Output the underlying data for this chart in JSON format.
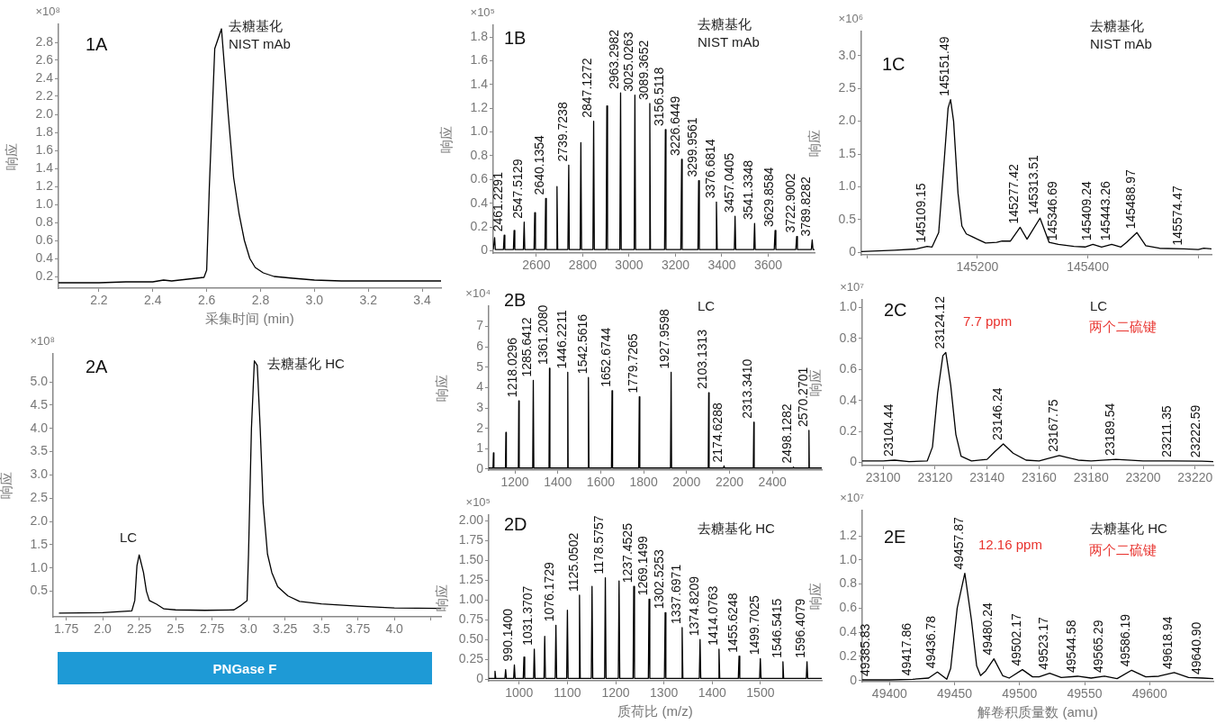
{
  "chart_data": [
    {
      "type": "line",
      "title": "1A",
      "xlabel": "采集时间 (min)",
      "ylabel": "响应",
      "color": "#000000",
      "annotations": [
        "×10⁸",
        "去糖基化\nNIST mAb"
      ],
      "x": [
        2.05,
        2.2,
        2.3,
        2.4,
        2.44,
        2.47,
        2.5,
        2.56,
        2.59,
        2.6,
        2.61,
        2.63,
        2.655,
        2.68,
        2.7,
        2.72,
        2.74,
        2.76,
        2.78,
        2.81,
        2.85,
        2.92,
        3.0,
        3.1,
        3.3,
        3.47
      ],
      "values": [
        0.13,
        0.13,
        0.14,
        0.14,
        0.16,
        0.15,
        0.16,
        0.18,
        0.19,
        0.27,
        1.2,
        2.73,
        2.95,
        2.0,
        1.3,
        0.9,
        0.6,
        0.4,
        0.3,
        0.24,
        0.2,
        0.18,
        0.16,
        0.15,
        0.15,
        0.15
      ],
      "xlim": [
        2.05,
        3.47
      ],
      "ylim": [
        0.07,
        3.0
      ],
      "xticks": [
        2.2,
        2.4,
        2.6,
        2.8,
        {
          "value": 3,
          "label": "3.0"
        },
        3.2,
        3.4
      ],
      "yticks": [
        0.2,
        0.4,
        0.6,
        0.8,
        {
          "value": 1,
          "label": "1.0"
        },
        1.2,
        1.4,
        1.6,
        1.8,
        {
          "value": 2,
          "label": "2.0"
        },
        2.2,
        2.4,
        2.6,
        2.8
      ]
    },
    {
      "type": "line",
      "title": "1B",
      "ylabel": "响应",
      "color": "#000000",
      "annotations": [
        "×10⁵",
        "去糖基化\nNIST mAb",
        {
          "text": "2461.2291",
          "x": 2461.2291,
          "y": 0.13
        },
        {
          "text": "2547.5129",
          "x": 2547.5129,
          "y": 0.24
        },
        {
          "text": "2640.1354",
          "x": 2640.1354,
          "y": 0.44
        },
        {
          "text": "2739.7238",
          "x": 2739.7238,
          "y": 0.72
        },
        {
          "text": "2847.1272",
          "x": 2847.1272,
          "y": 1.09
        },
        {
          "text": "2963.2982",
          "x": 2963.2982,
          "y": 1.33
        },
        {
          "text": "3025.0263",
          "x": 3025.0263,
          "y": 1.31
        },
        {
          "text": "3089.3652",
          "x": 3089.3652,
          "y": 1.24
        },
        {
          "text": "3156.5118",
          "x": 3156.5118,
          "y": 1.02
        },
        {
          "text": "3226.6449",
          "x": 3226.6449,
          "y": 0.77
        },
        {
          "text": "3299.9561",
          "x": 3299.9561,
          "y": 0.59
        },
        {
          "text": "3376.6814",
          "x": 3376.6814,
          "y": 0.41
        },
        {
          "text": "3457.0405",
          "x": 3457.0405,
          "y": 0.29
        },
        {
          "text": "3541.3348",
          "x": 3541.3348,
          "y": 0.23
        },
        {
          "text": "3629.8584",
          "x": 3629.8584,
          "y": 0.17
        },
        {
          "text": "3722.9002",
          "x": 3722.9002,
          "y": 0.12
        },
        {
          "text": "3789.8282",
          "x": 3789.8282,
          "y": 0.09
        }
      ],
      "x": [
        2414,
        2417,
        2420,
        2423,
        2458,
        2461.2291,
        2464,
        2501,
        2504,
        2507,
        2544,
        2547.5129,
        2550,
        2590,
        2593,
        2596,
        2637,
        2640.1354,
        2643,
        2686,
        2689,
        2692,
        2736,
        2739.7238,
        2742,
        2789,
        2792,
        2795,
        2844,
        2847.1272,
        2850,
        2901,
        2904,
        2907,
        2960,
        2963.2982,
        2966,
        3022,
        3025.0263,
        3028,
        3086,
        3089.3652,
        3092,
        3153,
        3156.5118,
        3159,
        3223,
        3226.6449,
        3229,
        3297,
        3299.9561,
        3303,
        3373,
        3376.6814,
        3380,
        3454,
        3457.0405,
        3460,
        3538,
        3541.3348,
        3544,
        3626,
        3629.8584,
        3633,
        3719,
        3722.9002,
        3726,
        3786,
        3789.8282,
        3793,
        3800
      ],
      "values": [
        0.01,
        0.01,
        0.11,
        0.01,
        0.01,
        0.13,
        0.01,
        0.01,
        0.17,
        0.01,
        0.01,
        0.24,
        0.01,
        0.01,
        0.32,
        0.01,
        0.01,
        0.44,
        0.01,
        0.01,
        0.54,
        0.01,
        0.01,
        0.72,
        0.01,
        0.01,
        0.91,
        0.01,
        0.01,
        1.09,
        0.01,
        0.01,
        1.22,
        0.01,
        0.01,
        1.33,
        0.01,
        0.01,
        1.31,
        0.01,
        0.01,
        1.24,
        0.01,
        0.01,
        1.02,
        0.01,
        0.01,
        0.77,
        0.01,
        0.01,
        0.59,
        0.01,
        0.01,
        0.41,
        0.01,
        0.01,
        0.29,
        0.01,
        0.01,
        0.23,
        0.01,
        0.01,
        0.17,
        0.01,
        0.01,
        0.12,
        0.01,
        0.01,
        0.09,
        0.01,
        0.01
      ],
      "xlim": [
        2414,
        3800
      ],
      "ylim": [
        -0.02,
        1.9
      ],
      "xticks": [
        2600,
        2800,
        3000,
        3200,
        3400,
        3600
      ],
      "yticks": [
        0,
        0.2,
        0.4,
        0.6,
        0.8,
        {
          "value": 1,
          "label": "1.0"
        },
        1.2,
        1.4,
        1.6,
        1.8
      ]
    },
    {
      "type": "line",
      "title": "1C",
      "ylabel": "响应",
      "color": "#000000",
      "annotations": [
        "×10⁶",
        "去糖基化\nNIST mAb",
        {
          "text": "145109.15",
          "x": 145109.15,
          "y": 0.09
        },
        {
          "text": "145151.49",
          "x": 145151.49,
          "y": 2.33
        },
        {
          "text": "145277.42",
          "x": 145277.42,
          "y": 0.38
        },
        {
          "text": "145313.51",
          "x": 145313.51,
          "y": 0.52
        },
        {
          "text": "145346.69",
          "x": 145346.69,
          "y": 0.12
        },
        {
          "text": "145409.24",
          "x": 145409.24,
          "y": 0.12
        },
        {
          "text": "145443.26",
          "x": 145443.26,
          "y": 0.12
        },
        {
          "text": "145488.97",
          "x": 145488.97,
          "y": 0.3
        },
        {
          "text": "145574.47",
          "x": 145574.47,
          "y": 0.05
        }
      ],
      "x": [
        144990,
        145050,
        145090,
        145109.15,
        145118,
        145130,
        145140,
        145147,
        145151.49,
        145157,
        145165,
        145172,
        145180,
        145190,
        145200,
        145215,
        145235,
        145245,
        145260,
        145277.42,
        145290,
        145313.51,
        145330,
        145346.69,
        145375,
        145395,
        145409.24,
        145425,
        145443.26,
        145460,
        145470,
        145488.97,
        145505,
        145530,
        145574.47,
        145600,
        145610,
        145624
      ],
      "values": [
        0.01,
        0.03,
        0.05,
        0.09,
        0.08,
        0.3,
        1.4,
        2.2,
        2.33,
        2.0,
        0.9,
        0.4,
        0.28,
        0.24,
        0.2,
        0.14,
        0.15,
        0.17,
        0.17,
        0.38,
        0.2,
        0.52,
        0.15,
        0.12,
        0.09,
        0.08,
        0.12,
        0.08,
        0.12,
        0.08,
        0.15,
        0.3,
        0.1,
        0.06,
        0.05,
        0.04,
        0.06,
        0.05
      ],
      "xlim": [
        144990,
        145624
      ],
      "ylim": [
        -0.04,
        3.37
      ],
      "xticks": [
        {
          "value": 145000,
          "label": null
        },
        145200,
        145400,
        {
          "value": 145600,
          "label": null
        }
      ],
      "yticks": [
        0,
        0.5,
        {
          "value": 1,
          "label": "1.0"
        },
        1.5,
        {
          "value": 2,
          "label": "2.0"
        },
        2.5,
        {
          "value": 3,
          "label": "3.0"
        }
      ]
    },
    {
      "type": "line",
      "title": "2A",
      "ylabel": "响应",
      "color": "#000000",
      "annotations": [
        "×10⁸",
        "LC",
        "去糖基化 HC",
        "PNGase F"
      ],
      "x": [
        1.7,
        2.0,
        2.2,
        2.22,
        2.235,
        2.25,
        2.28,
        2.3,
        2.32,
        2.37,
        2.42,
        2.5,
        2.7,
        2.9,
        2.95,
        2.99,
        3.0,
        3.02,
        3.04,
        3.06,
        3.08,
        3.1,
        3.13,
        3.16,
        3.2,
        3.27,
        3.35,
        3.5,
        3.75,
        4.0,
        4.32
      ],
      "values": [
        0.03,
        0.04,
        0.08,
        0.3,
        1.05,
        1.28,
        0.9,
        0.5,
        0.3,
        0.22,
        0.12,
        0.1,
        0.09,
        0.1,
        0.2,
        0.3,
        1.3,
        4.0,
        5.45,
        5.35,
        4.0,
        2.4,
        1.3,
        0.9,
        0.6,
        0.4,
        0.28,
        0.23,
        0.18,
        0.14,
        0.13
      ],
      "xlim": [
        1.66,
        4.32
      ],
      "ylim": [
        -0.05,
        5.6
      ],
      "xticks": [
        1.75,
        {
          "value": 2,
          "label": "2.0"
        },
        2.25,
        2.5,
        2.75,
        {
          "value": 3,
          "label": "3.0"
        },
        3.25,
        3.5,
        3.75,
        {
          "value": 4,
          "label": "4.0"
        },
        {
          "value": 4.25,
          "label": null
        }
      ],
      "yticks": [
        0.5,
        {
          "value": 1,
          "label": "1.0"
        },
        1.5,
        {
          "value": 2,
          "label": "2.0"
        },
        2.5,
        {
          "value": 3,
          "label": "3.0"
        },
        3.5,
        {
          "value": 4,
          "label": "4.0"
        },
        4.5,
        {
          "value": 5,
          "label": "5.0"
        }
      ]
    },
    {
      "type": "line",
      "title": "2B",
      "ylabel": "响应",
      "color": "#000000",
      "annotations": [
        "×10⁴",
        "LC",
        {
          "text": "1218.0296",
          "x": 1218.0296,
          "y": 3.35
        },
        {
          "text": "1285.6412",
          "x": 1285.6412,
          "y": 4.35
        },
        {
          "text": "1361.2080",
          "x": 1361.208,
          "y": 4.95
        },
        {
          "text": "1446.2211",
          "x": 1446.2211,
          "y": 4.75
        },
        {
          "text": "1542.5616",
          "x": 1542.5616,
          "y": 4.5
        },
        {
          "text": "1652.6744",
          "x": 1652.6744,
          "y": 3.85
        },
        {
          "text": "1779.7265",
          "x": 1779.7265,
          "y": 3.55
        },
        {
          "text": "1927.9598",
          "x": 1927.9598,
          "y": 4.75
        },
        {
          "text": "2103.1313",
          "x": 2103.1313,
          "y": 3.75
        },
        {
          "text": "2174.6288",
          "x": 2174.6288,
          "y": 0.15
        },
        {
          "text": "2313.3410",
          "x": 2313.341,
          "y": 2.3
        },
        {
          "text": "2498.1282",
          "x": 2498.1282,
          "y": 0.1
        },
        {
          "text": "2570.2701",
          "x": 2570.2701,
          "y": 1.9
        }
      ],
      "x": [
        1078,
        1098,
        1100,
        1102,
        1156,
        1158,
        1160,
        1216,
        1218.0296,
        1220,
        1283,
        1285.6412,
        1288,
        1359,
        1361.208,
        1363,
        1444,
        1446.2211,
        1448,
        1540,
        1542.5616,
        1545,
        1650,
        1652.6744,
        1655,
        1777,
        1779.7265,
        1782,
        1925,
        1927.9598,
        1930,
        2101,
        2103.1313,
        2105,
        2172,
        2174.6288,
        2177,
        2311,
        2313.341,
        2315,
        2496,
        2498.1282,
        2500,
        2568,
        2570.2701,
        2572,
        2630
      ],
      "values": [
        0.05,
        0.05,
        0.8,
        0.05,
        0.05,
        1.8,
        0.05,
        0.05,
        3.35,
        0.05,
        0.05,
        4.35,
        0.05,
        0.05,
        4.95,
        0.05,
        0.05,
        4.75,
        0.05,
        0.05,
        4.5,
        0.05,
        0.05,
        3.85,
        0.05,
        0.05,
        3.55,
        0.05,
        0.05,
        4.75,
        0.05,
        0.05,
        3.75,
        0.05,
        0.05,
        0.15,
        0.05,
        0.05,
        2.3,
        0.05,
        0.05,
        0.1,
        0.05,
        0.05,
        1.9,
        0.05,
        0.05
      ],
      "xlim": [
        1078,
        2630
      ],
      "ylim": [
        -0.05,
        8
      ],
      "xticks": [
        1200,
        1400,
        1600,
        1800,
        2000,
        2200,
        2400
      ],
      "yticks": [
        0,
        1,
        2,
        3,
        4,
        5,
        6,
        7
      ]
    },
    {
      "type": "line",
      "title": "2C",
      "ylabel": "响应",
      "color": "#000000",
      "annotations": [
        "×10⁷",
        "7.7 ppm",
        "LC",
        "两个二硫键",
        {
          "text": "23104.44",
          "x": 23104.44,
          "y": 0.015
        },
        {
          "text": "23124.12",
          "x": 23124.12,
          "y": 0.71
        },
        {
          "text": "23146.24",
          "x": 23146.24,
          "y": 0.12
        },
        {
          "text": "23167.75",
          "x": 23167.75,
          "y": 0.045
        },
        {
          "text": "23189.54",
          "x": 23189.54,
          "y": 0.02
        },
        {
          "text": "23211.35",
          "x": 23211.35,
          "y": 0.01
        },
        {
          "text": "23222.59",
          "x": 23222.59,
          "y": 0.008
        }
      ],
      "x": [
        23092,
        23100,
        23104.44,
        23110,
        23117,
        23119,
        23121,
        23123,
        23124.12,
        23126,
        23128,
        23130,
        23134,
        23140,
        23143,
        23146.24,
        23150,
        23155,
        23160,
        23167.75,
        23175,
        23180,
        23189.54,
        23200,
        23211.35,
        23222.59,
        23227
      ],
      "values": [
        0.01,
        0.01,
        0.015,
        0.005,
        0.01,
        0.1,
        0.45,
        0.69,
        0.71,
        0.5,
        0.18,
        0.04,
        0.01,
        0.02,
        0.07,
        0.12,
        0.06,
        0.015,
        0.01,
        0.045,
        0.015,
        0.01,
        0.02,
        0.01,
        0.01,
        0.008,
        0.005
      ],
      "xlim": [
        23092,
        23227
      ],
      "ylim": [
        -0.02,
        1.05
      ],
      "xticks": [
        23100,
        23120,
        23140,
        23160,
        23180,
        23200,
        23220
      ],
      "yticks": [
        0,
        0.2,
        0.4,
        0.6,
        0.8,
        {
          "value": 1,
          "label": "1.0"
        }
      ]
    },
    {
      "type": "line",
      "title": "2D",
      "xlabel": "质荷比 (m/z)",
      "ylabel": "响应",
      "color": "#000000",
      "annotations": [
        "×10⁵",
        "去糖基化 HC",
        {
          "text": "990.1400",
          "x": 990.14,
          "y": 0.18
        },
        {
          "text": "1031.3707",
          "x": 1031.3707,
          "y": 0.38
        },
        {
          "text": "1076.1729",
          "x": 1076.1729,
          "y": 0.68
        },
        {
          "text": "1125.0502",
          "x": 1125.0502,
          "y": 1.06
        },
        {
          "text": "1178.5757",
          "x": 1178.5757,
          "y": 1.28
        },
        {
          "text": "1237.4525",
          "x": 1237.4525,
          "y": 1.17
        },
        {
          "text": "1269.1499",
          "x": 1269.1499,
          "y": 1.01
        },
        {
          "text": "1302.5253",
          "x": 1302.5253,
          "y": 0.84
        },
        {
          "text": "1337.6971",
          "x": 1337.6971,
          "y": 0.65
        },
        {
          "text": "1374.8209",
          "x": 1374.8209,
          "y": 0.5
        },
        {
          "text": "1414.0763",
          "x": 1414.0763,
          "y": 0.38
        },
        {
          "text": "1455.6248",
          "x": 1455.6248,
          "y": 0.29
        },
        {
          "text": "1499.7025",
          "x": 1499.7025,
          "y": 0.26
        },
        {
          "text": "1546.5415",
          "x": 1546.5415,
          "y": 0.22
        },
        {
          "text": "1596.4079",
          "x": 1596.4079,
          "y": 0.22
        }
      ],
      "x": [
        937,
        948.5,
        950,
        951.5,
        970.5,
        972,
        973.5,
        988.6,
        990.14,
        991.6,
        1008.5,
        1010,
        1011.5,
        1029.9,
        1031.3707,
        1032.9,
        1051.5,
        1053,
        1054.5,
        1074.7,
        1076.1729,
        1077.7,
        1098.5,
        1100,
        1101.5,
        1123.6,
        1125.0502,
        1126.6,
        1149.5,
        1151,
        1152.5,
        1177.1,
        1178.5757,
        1180.1,
        1205.5,
        1207,
        1208.5,
        1236,
        1237.4525,
        1239,
        1267.7,
        1269.1499,
        1270.7,
        1301,
        1302.5253,
        1304,
        1336.2,
        1337.6971,
        1339.2,
        1373.3,
        1374.8209,
        1376.3,
        1412.6,
        1414.0763,
        1415.6,
        1454.1,
        1455.6248,
        1457.1,
        1498.2,
        1499.7025,
        1501.2,
        1545,
        1546.5415,
        1548,
        1594.9,
        1596.4079,
        1597.9,
        1627
      ],
      "values": [
        0.01,
        0.01,
        0.1,
        0.01,
        0.01,
        0.12,
        0.01,
        0.01,
        0.18,
        0.01,
        0.01,
        0.28,
        0.01,
        0.01,
        0.38,
        0.01,
        0.01,
        0.54,
        0.01,
        0.01,
        0.68,
        0.01,
        0.01,
        0.87,
        0.01,
        0.01,
        1.06,
        0.01,
        0.01,
        1.17,
        0.01,
        0.01,
        1.28,
        0.01,
        0.01,
        1.24,
        0.01,
        0.01,
        1.17,
        0.01,
        0.01,
        1.01,
        0.01,
        0.01,
        0.84,
        0.01,
        0.01,
        0.65,
        0.01,
        0.01,
        0.5,
        0.01,
        0.01,
        0.38,
        0.01,
        0.01,
        0.29,
        0.01,
        0.01,
        0.26,
        0.01,
        0.01,
        0.22,
        0.01,
        0.01,
        0.22,
        0.01,
        0.01
      ],
      "xlim": [
        937,
        1627
      ],
      "ylim": [
        -0.02,
        2.07
      ],
      "xticks": [
        1000,
        1100,
        1200,
        1300,
        1400,
        1500
      ],
      "yticks": [
        0,
        0.25,
        {
          "value": 0.5,
          "label": "0.50"
        },
        0.75,
        {
          "value": 1,
          "label": "1.00"
        },
        1.25,
        {
          "value": 1.5,
          "label": "1.50"
        },
        1.75,
        {
          "value": 2,
          "label": "2.00"
        }
      ]
    },
    {
      "type": "line",
      "title": "2E",
      "xlabel": "解卷积质量数 (amu)",
      "ylabel": "响应",
      "color": "#000000",
      "annotations": [
        "×10⁷",
        "12.16 ppm",
        "去糖基化 HC",
        "两个二硫键",
        {
          "text": "49385.83",
          "x": 49385.83,
          "y": 0.005
        },
        {
          "text": "49417.86",
          "x": 49417.86,
          "y": 0.01
        },
        {
          "text": "49436.78",
          "x": 49436.78,
          "y": 0.07
        },
        {
          "text": "49457.87",
          "x": 49457.87,
          "y": 0.89
        },
        {
          "text": "49480.24",
          "x": 49480.24,
          "y": 0.18
        },
        {
          "text": "49502.17",
          "x": 49502.17,
          "y": 0.09
        },
        {
          "text": "49523.17",
          "x": 49523.17,
          "y": 0.06
        },
        {
          "text": "49544.58",
          "x": 49544.58,
          "y": 0.035
        },
        {
          "text": "49565.29",
          "x": 49565.29,
          "y": 0.035
        },
        {
          "text": "49586.19",
          "x": 49586.19,
          "y": 0.085
        },
        {
          "text": "49618.94",
          "x": 49618.94,
          "y": 0.065
        },
        {
          "text": "49640.90",
          "x": 49640.9,
          "y": 0.02
        }
      ],
      "x": [
        49379,
        49385.83,
        49400,
        49417.86,
        49430,
        49436.78,
        49444,
        49447,
        49452,
        49457.87,
        49463,
        49467,
        49470,
        49474,
        49480.24,
        49487,
        49492,
        49495,
        49502.17,
        49510,
        49515,
        49523.17,
        49532,
        49544.58,
        49555,
        49565.29,
        49575,
        49586.19,
        49597,
        49607,
        49618.94,
        49630,
        49640.9,
        49649
      ],
      "values": [
        0.005,
        0.005,
        0.005,
        0.01,
        0.02,
        0.07,
        0.01,
        0.1,
        0.6,
        0.89,
        0.5,
        0.12,
        0.04,
        0.08,
        0.18,
        0.04,
        0.02,
        0.04,
        0.09,
        0.03,
        0.03,
        0.06,
        0.025,
        0.035,
        0.02,
        0.035,
        0.015,
        0.085,
        0.03,
        0.035,
        0.065,
        0.025,
        0.02,
        0.015
      ],
      "xlim": [
        49379,
        49649
      ],
      "ylim": [
        -0.01,
        1.41
      ],
      "xticks": [
        49400,
        49450,
        49500,
        49550,
        49600
      ],
      "yticks": [
        0,
        0.2,
        0.4,
        0.6,
        0.8,
        {
          "value": 1,
          "label": "1.0"
        },
        1.2
      ]
    }
  ]
}
